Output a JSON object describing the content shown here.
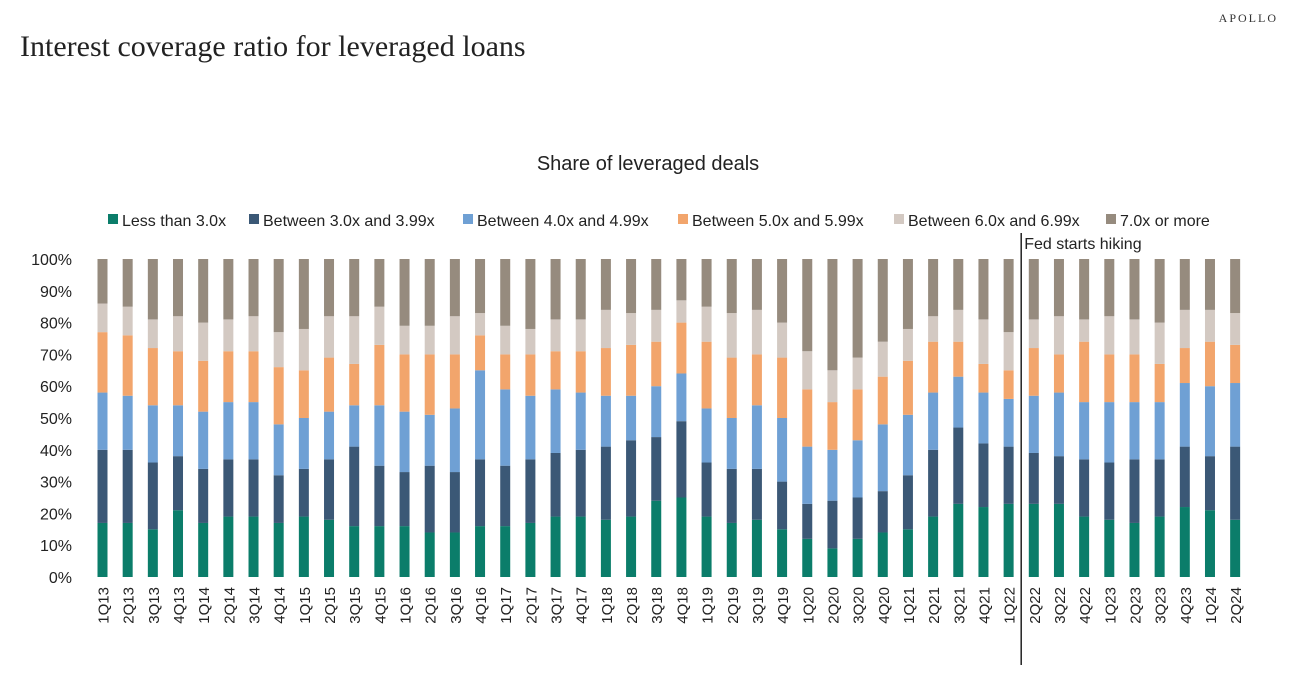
{
  "brand": "APOLLO",
  "page_title": "Interest coverage ratio for leveraged loans",
  "chart_data": {
    "type": "bar",
    "stacked": true,
    "title": "Share of leveraged deals",
    "xlabel": "",
    "ylabel": "",
    "ylim": [
      0,
      100
    ],
    "yticks": [
      "0%",
      "10%",
      "20%",
      "30%",
      "40%",
      "50%",
      "60%",
      "70%",
      "80%",
      "90%",
      "100%"
    ],
    "legend_position": "top",
    "grid": false,
    "categories": [
      "1Q13",
      "2Q13",
      "3Q13",
      "4Q13",
      "1Q14",
      "2Q14",
      "3Q14",
      "4Q14",
      "1Q15",
      "2Q15",
      "3Q15",
      "4Q15",
      "1Q16",
      "2Q16",
      "3Q16",
      "4Q16",
      "1Q17",
      "2Q17",
      "3Q17",
      "4Q17",
      "1Q18",
      "2Q18",
      "3Q18",
      "4Q18",
      "1Q19",
      "2Q19",
      "3Q19",
      "4Q19",
      "1Q20",
      "2Q20",
      "3Q20",
      "4Q20",
      "1Q21",
      "2Q21",
      "3Q21",
      "4Q21",
      "1Q22",
      "2Q22",
      "3Q22",
      "4Q22",
      "1Q23",
      "2Q23",
      "3Q23",
      "4Q23",
      "1Q24",
      "2Q24"
    ],
    "series": [
      {
        "name": "Less than 3.0x",
        "color": "#0b7d6a",
        "values": [
          17,
          17,
          15,
          21,
          17,
          19,
          19,
          17,
          19,
          18,
          16,
          16,
          16,
          14,
          14,
          16,
          16,
          17,
          19,
          19,
          18,
          19,
          24,
          25,
          19,
          17,
          18,
          15,
          12,
          9,
          12,
          14,
          15,
          19,
          23,
          22,
          23,
          23,
          23,
          19,
          18,
          17,
          19,
          22,
          21,
          18
        ]
      },
      {
        "name": "Between 3.0x and 3.99x",
        "color": "#3b5876",
        "values": [
          23,
          23,
          21,
          17,
          17,
          18,
          18,
          15,
          15,
          19,
          25,
          19,
          17,
          21,
          19,
          21,
          19,
          20,
          20,
          21,
          23,
          24,
          20,
          24,
          17,
          17,
          16,
          15,
          11,
          15,
          13,
          13,
          17,
          21,
          24,
          20,
          18,
          16,
          15,
          18,
          18,
          20,
          18,
          19,
          17,
          23
        ]
      },
      {
        "name": "Between 4.0x and 4.99x",
        "color": "#6fa0d4",
        "values": [
          18,
          17,
          18,
          16,
          18,
          18,
          18,
          16,
          16,
          15,
          13,
          19,
          19,
          16,
          20,
          28,
          24,
          20,
          20,
          18,
          16,
          14,
          16,
          15,
          17,
          16,
          20,
          20,
          18,
          16,
          18,
          21,
          19,
          18,
          16,
          16,
          15,
          18,
          20,
          18,
          19,
          18,
          18,
          20,
          22,
          20
        ]
      },
      {
        "name": "Between 5.0x and 5.99x",
        "color": "#f2a56c",
        "values": [
          19,
          19,
          18,
          17,
          16,
          16,
          16,
          18,
          15,
          17,
          13,
          19,
          18,
          19,
          17,
          11,
          11,
          13,
          12,
          13,
          15,
          16,
          14,
          16,
          21,
          19,
          16,
          19,
          18,
          15,
          16,
          15,
          17,
          16,
          11,
          9,
          9,
          15,
          12,
          19,
          15,
          15,
          12,
          11,
          14,
          12
        ]
      },
      {
        "name": "Between 6.0x and 6.99x",
        "color": "#d3c9c2",
        "values": [
          9,
          9,
          9,
          11,
          12,
          10,
          11,
          11,
          13,
          13,
          15,
          12,
          9,
          9,
          12,
          7,
          9,
          8,
          10,
          10,
          12,
          10,
          10,
          7,
          11,
          14,
          14,
          11,
          12,
          10,
          10,
          11,
          10,
          8,
          10,
          14,
          12,
          9,
          12,
          7,
          12,
          11,
          13,
          12,
          10,
          10
        ]
      },
      {
        "name": "7.0x or more",
        "color": "#968b7e",
        "values": [
          14,
          15,
          19,
          18,
          20,
          19,
          18,
          23,
          22,
          18,
          18,
          15,
          21,
          21,
          18,
          17,
          21,
          22,
          19,
          19,
          16,
          17,
          16,
          13,
          15,
          17,
          16,
          20,
          29,
          35,
          31,
          26,
          22,
          18,
          16,
          19,
          23,
          19,
          18,
          19,
          18,
          19,
          20,
          16,
          16,
          17
        ]
      }
    ],
    "annotation": {
      "text": "Fed starts hiking",
      "after_category": "1Q22"
    }
  }
}
